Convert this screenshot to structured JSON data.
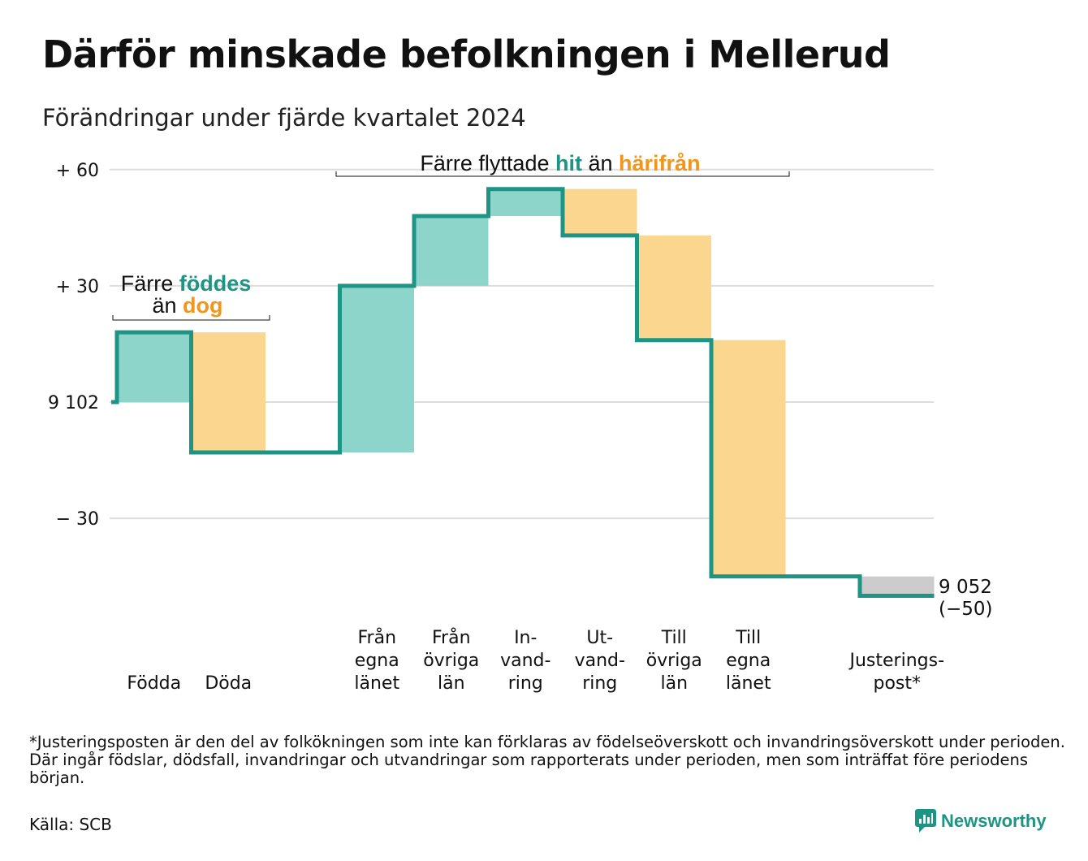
{
  "header": {
    "title": "Därför minskade befolkningen i Mellerud",
    "subtitle": "Förändringar under fjärde kvartalet 2024"
  },
  "annotations": {
    "births": {
      "prefix": "Färre ",
      "highlight1": "föddes",
      "middle": "än ",
      "highlight2": "dog"
    },
    "moves": {
      "prefix": "Färre flyttade ",
      "highlight1": "hit",
      "middle": " än ",
      "highlight2": "härifrån"
    }
  },
  "end_label": {
    "value": "9 052",
    "change": "(−50)"
  },
  "footnote": "*Justeringsposten är den del av folkökningen som inte kan förklaras av födelseöverskott och invandringsöverskott under perioden. Där ingår födslar, dödsfall, invandringar och utvandringar som rapporterats under perioden, men som inträffat före periodens början.",
  "source": "Källa: SCB",
  "brand": "Newsworthy",
  "colors": {
    "increase": "#8dd5cb",
    "decrease": "#fad68f",
    "adjustment": "#cccccc",
    "line": "#1e9484",
    "accent_teal": "#1e9484",
    "accent_orange": "#f0961d",
    "grid": "#dddddd"
  },
  "chart_data": {
    "type": "waterfall",
    "start_value": 9102,
    "end_value": 9052,
    "net_change": -50,
    "y_axis": {
      "ticks": [
        60,
        30,
        0,
        -30
      ],
      "tick_labels": [
        "+ 60",
        "+ 30",
        "9 102",
        "− 30"
      ],
      "range": [
        -55,
        63
      ]
    },
    "steps": [
      {
        "label": [
          "Födda"
        ],
        "change": 18,
        "kind": "increase"
      },
      {
        "label": [
          "Döda"
        ],
        "change": -31,
        "kind": "decrease"
      },
      {
        "label": [],
        "change": 0,
        "kind": "gap"
      },
      {
        "label": [
          "Från",
          "egna",
          "länet"
        ],
        "change": 43,
        "kind": "increase"
      },
      {
        "label": [
          "Från",
          "övriga",
          "län"
        ],
        "change": 18,
        "kind": "increase"
      },
      {
        "label": [
          "In-",
          "vand-",
          "ring"
        ],
        "change": 7,
        "kind": "increase"
      },
      {
        "label": [
          "Ut-",
          "vand-",
          "ring"
        ],
        "change": -12,
        "kind": "decrease"
      },
      {
        "label": [
          "Till",
          "övriga",
          "län"
        ],
        "change": -27,
        "kind": "decrease"
      },
      {
        "label": [
          "Till",
          "egna",
          "länet"
        ],
        "change": -61,
        "kind": "decrease"
      },
      {
        "label": [],
        "change": 0,
        "kind": "gap"
      },
      {
        "label": [
          "Justerings-",
          "post*"
        ],
        "change": -5,
        "kind": "adjustment"
      }
    ],
    "grid": true
  }
}
